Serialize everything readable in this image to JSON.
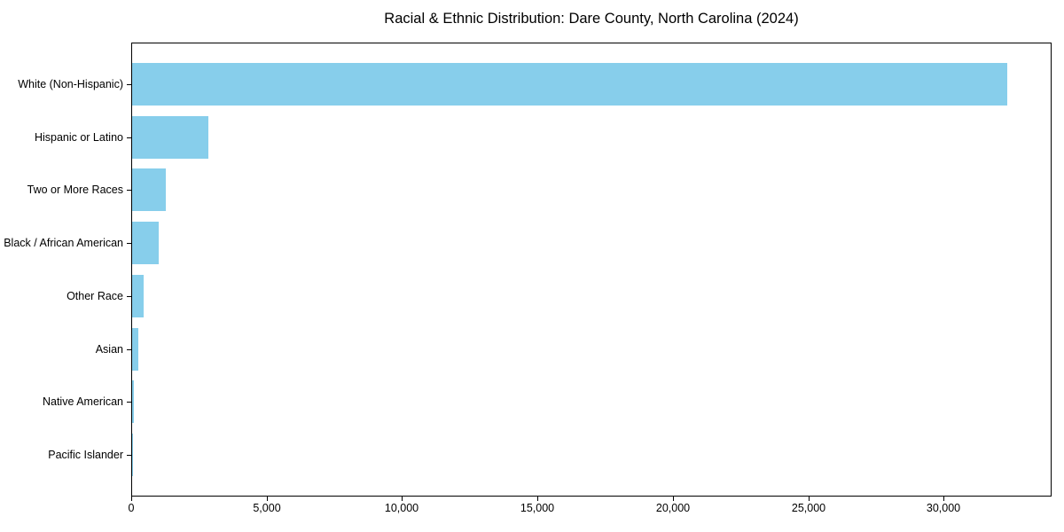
{
  "chart_data": {
    "type": "bar",
    "orientation": "horizontal",
    "title": "Racial & Ethnic Distribution: Dare County, North Carolina (2024)",
    "categories": [
      "White (Non-Hispanic)",
      "Hispanic or Latino",
      "Two or More Races",
      "Black / African American",
      "Other Race",
      "Asian",
      "Native American",
      "Pacific Islander"
    ],
    "values": [
      32300,
      2800,
      1230,
      970,
      420,
      220,
      60,
      20
    ],
    "xlabel": "",
    "ylabel": "",
    "xlim": [
      0,
      33915
    ],
    "x_ticks": [
      0,
      5000,
      10000,
      15000,
      20000,
      25000,
      30000
    ],
    "x_tick_labels": [
      "0",
      "5,000",
      "10,000",
      "15,000",
      "20,000",
      "25,000",
      "30,000"
    ],
    "bar_color": "#87CEEB",
    "background_color": "#ffffff",
    "axis_color": "#000000",
    "grid": false,
    "legend": null
  }
}
